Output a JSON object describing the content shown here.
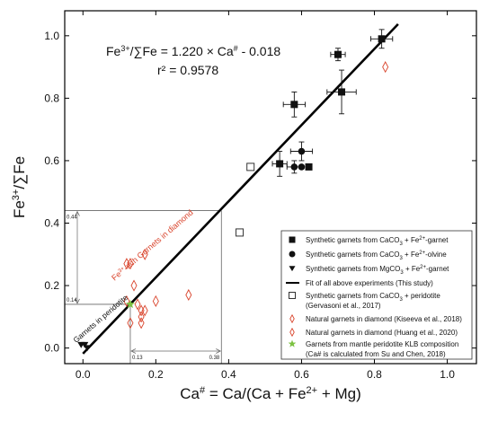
{
  "chart_data": {
    "type": "scatter",
    "title": "",
    "xlabel_parts": [
      "Ca",
      "#",
      " = Ca/(Ca + Fe",
      "2+",
      " + Mg)"
    ],
    "ylabel_parts": [
      "Fe",
      "3+",
      "/∑Fe"
    ],
    "xlim": [
      -0.05,
      1.08
    ],
    "ylim": [
      -0.05,
      1.08
    ],
    "xticks": [
      "0.0",
      "0.2",
      "0.4",
      "0.6",
      "0.8",
      "1.0"
    ],
    "yticks": [
      "0.0",
      "0.2",
      "0.4",
      "0.6",
      "0.8",
      "1.0"
    ],
    "equation": {
      "line1_parts": [
        "Fe",
        "3+",
        "/∑Fe = 1.220 × Ca",
        "#",
        " - 0.018"
      ],
      "line2": "r² = 0.9578"
    },
    "fit": {
      "slope": 1.22,
      "intercept": -0.018,
      "x_range": [
        0.0,
        0.865
      ]
    },
    "inset": {
      "y_high_label": "0.44",
      "y_low_label": "0.14",
      "x_low_label": "0.13",
      "x_high_label": "0.38",
      "y_high": 0.44,
      "y_low": 0.14,
      "x_low": 0.13,
      "x_high": 0.38
    },
    "annotations": {
      "peridotite": "Garnets in peridotite",
      "diamond_parts": [
        "Fe",
        "3+",
        "-rich Garnets in diamond"
      ]
    },
    "series": [
      {
        "name": "Synthetic garnets from CaCO3 + Fe2+-garnet",
        "label_parts": [
          "Synthetic garnets from CaCO",
          "3",
          " + Fe",
          "2+",
          "-garnet"
        ],
        "marker": "square-filled",
        "points": [
          {
            "x": 0.82,
            "y": 0.99,
            "xerr": 0.03,
            "yerr": 0.03
          },
          {
            "x": 0.7,
            "y": 0.94,
            "xerr": 0.02,
            "yerr": 0.02
          },
          {
            "x": 0.71,
            "y": 0.82,
            "xerr": 0.04,
            "yerr": 0.07
          },
          {
            "x": 0.58,
            "y": 0.78,
            "xerr": 0.03,
            "yerr": 0.04
          },
          {
            "x": 0.54,
            "y": 0.59,
            "xerr": 0.02,
            "yerr": 0.04
          },
          {
            "x": 0.62,
            "y": 0.58,
            "xerr": 0.0,
            "yerr": 0.0
          }
        ]
      },
      {
        "name": "Synthetic garnets from CaCO3 + Fe2+-olvine",
        "label_parts": [
          "Synthetic garnets from CaCO",
          "3",
          " + Fe",
          "2+",
          "-olvine"
        ],
        "marker": "circle-filled",
        "points": [
          {
            "x": 0.6,
            "y": 0.63,
            "xerr": 0.03,
            "yerr": 0.03
          },
          {
            "x": 0.58,
            "y": 0.58,
            "xerr": 0.02,
            "yerr": 0.02
          },
          {
            "x": 0.6,
            "y": 0.58,
            "xerr": 0.0,
            "yerr": 0.0
          }
        ]
      },
      {
        "name": "Synthetic garnets from MgCO3 + Fe2+-garnet",
        "label_parts": [
          "Synthetic garnets from MgCO",
          "3",
          " + Fe",
          "2+",
          "-garnet"
        ],
        "marker": "triangle-down-filled",
        "points": [
          {
            "x": -0.005,
            "y": 0.01
          },
          {
            "x": 0.005,
            "y": 0.01
          },
          {
            "x": 0.012,
            "y": 0.0
          }
        ]
      },
      {
        "name": "Fit of all above experiments (This study)",
        "label_parts": [
          "Fit of all above experiments (This study)"
        ],
        "marker": "line"
      },
      {
        "name": "Synthetic garnets from CaCO3 + peridotite",
        "label_parts": [
          "Synthetic garnets from CaCO",
          "3",
          " + peridotite"
        ],
        "label_line2": "(Gervasoni et al., 2017)",
        "marker": "square-open",
        "points": [
          {
            "x": 0.46,
            "y": 0.58
          },
          {
            "x": 0.43,
            "y": 0.37
          }
        ]
      },
      {
        "name": "Natural garnets in diamond (Kiseeva et al., 2018)",
        "label_parts": [
          "Natural garnets in diamond (Kiseeva et al., 2018)"
        ],
        "marker": "diamond-open",
        "points": [
          {
            "x": 0.12,
            "y": 0.27
          },
          {
            "x": 0.13,
            "y": 0.27
          },
          {
            "x": 0.17,
            "y": 0.3
          },
          {
            "x": 0.14,
            "y": 0.2
          },
          {
            "x": 0.12,
            "y": 0.15
          },
          {
            "x": 0.15,
            "y": 0.14
          },
          {
            "x": 0.16,
            "y": 0.12
          },
          {
            "x": 0.17,
            "y": 0.12
          },
          {
            "x": 0.16,
            "y": 0.1
          },
          {
            "x": 0.2,
            "y": 0.15
          },
          {
            "x": 0.29,
            "y": 0.17
          },
          {
            "x": 0.83,
            "y": 0.9
          }
        ]
      },
      {
        "name": "Natural garnets in diamond (Huang et al., 2020)",
        "label_parts": [
          "Natural garnets in diamond (Huang et al., 2020)"
        ],
        "marker": "diamond-open",
        "points": [
          {
            "x": 0.13,
            "y": 0.08
          },
          {
            "x": 0.16,
            "y": 0.08
          }
        ]
      },
      {
        "name": "Garnets from mantle peridotite KLB composition",
        "label_parts": [
          "Garnets from mantle peridotite KLB composition"
        ],
        "label_line2": "(Ca# is calculated from Su and Chen, 2018)",
        "marker": "star",
        "points": [
          {
            "x": 0.13,
            "y": 0.14
          }
        ]
      }
    ],
    "legend": {
      "placement": "bottom-right",
      "frame": true
    },
    "grid": false
  }
}
